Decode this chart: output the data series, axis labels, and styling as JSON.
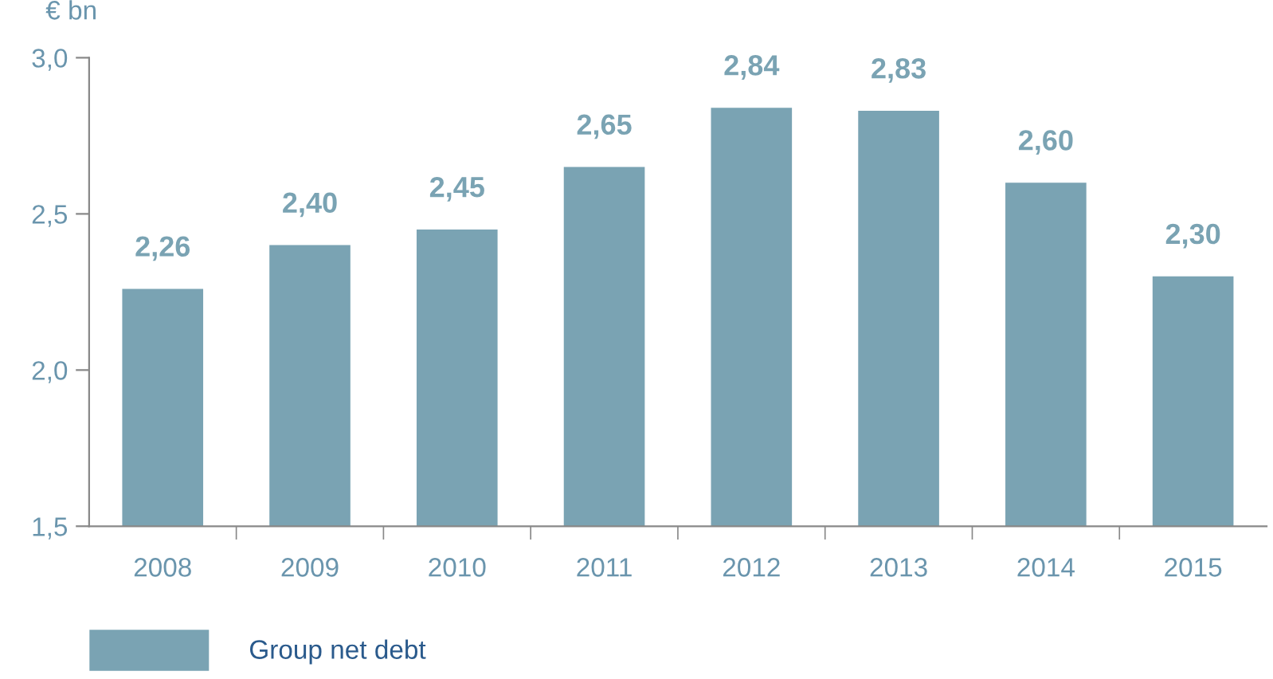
{
  "chart_data": {
    "type": "bar",
    "ylabel": "€ bn",
    "categories": [
      "2008",
      "2009",
      "2010",
      "2011",
      "2012",
      "2013",
      "2014",
      "2015"
    ],
    "series": [
      {
        "name": "Group net debt",
        "color": "#7aa3b3",
        "values": [
          2.26,
          2.4,
          2.45,
          2.65,
          2.84,
          2.83,
          2.6,
          2.3
        ],
        "value_labels": [
          "2,26",
          "2,40",
          "2,45",
          "2,65",
          "2,84",
          "2,83",
          "2,60",
          "2,30"
        ]
      }
    ],
    "ylim": [
      1.5,
      3.0
    ],
    "yticks": [
      {
        "value": 1.5,
        "label": "1,5"
      },
      {
        "value": 2.0,
        "label": "2,0"
      },
      {
        "value": 2.5,
        "label": "2,5"
      },
      {
        "value": 3.0,
        "label": "3,0"
      }
    ],
    "grid": false,
    "legend": "bottom left"
  }
}
